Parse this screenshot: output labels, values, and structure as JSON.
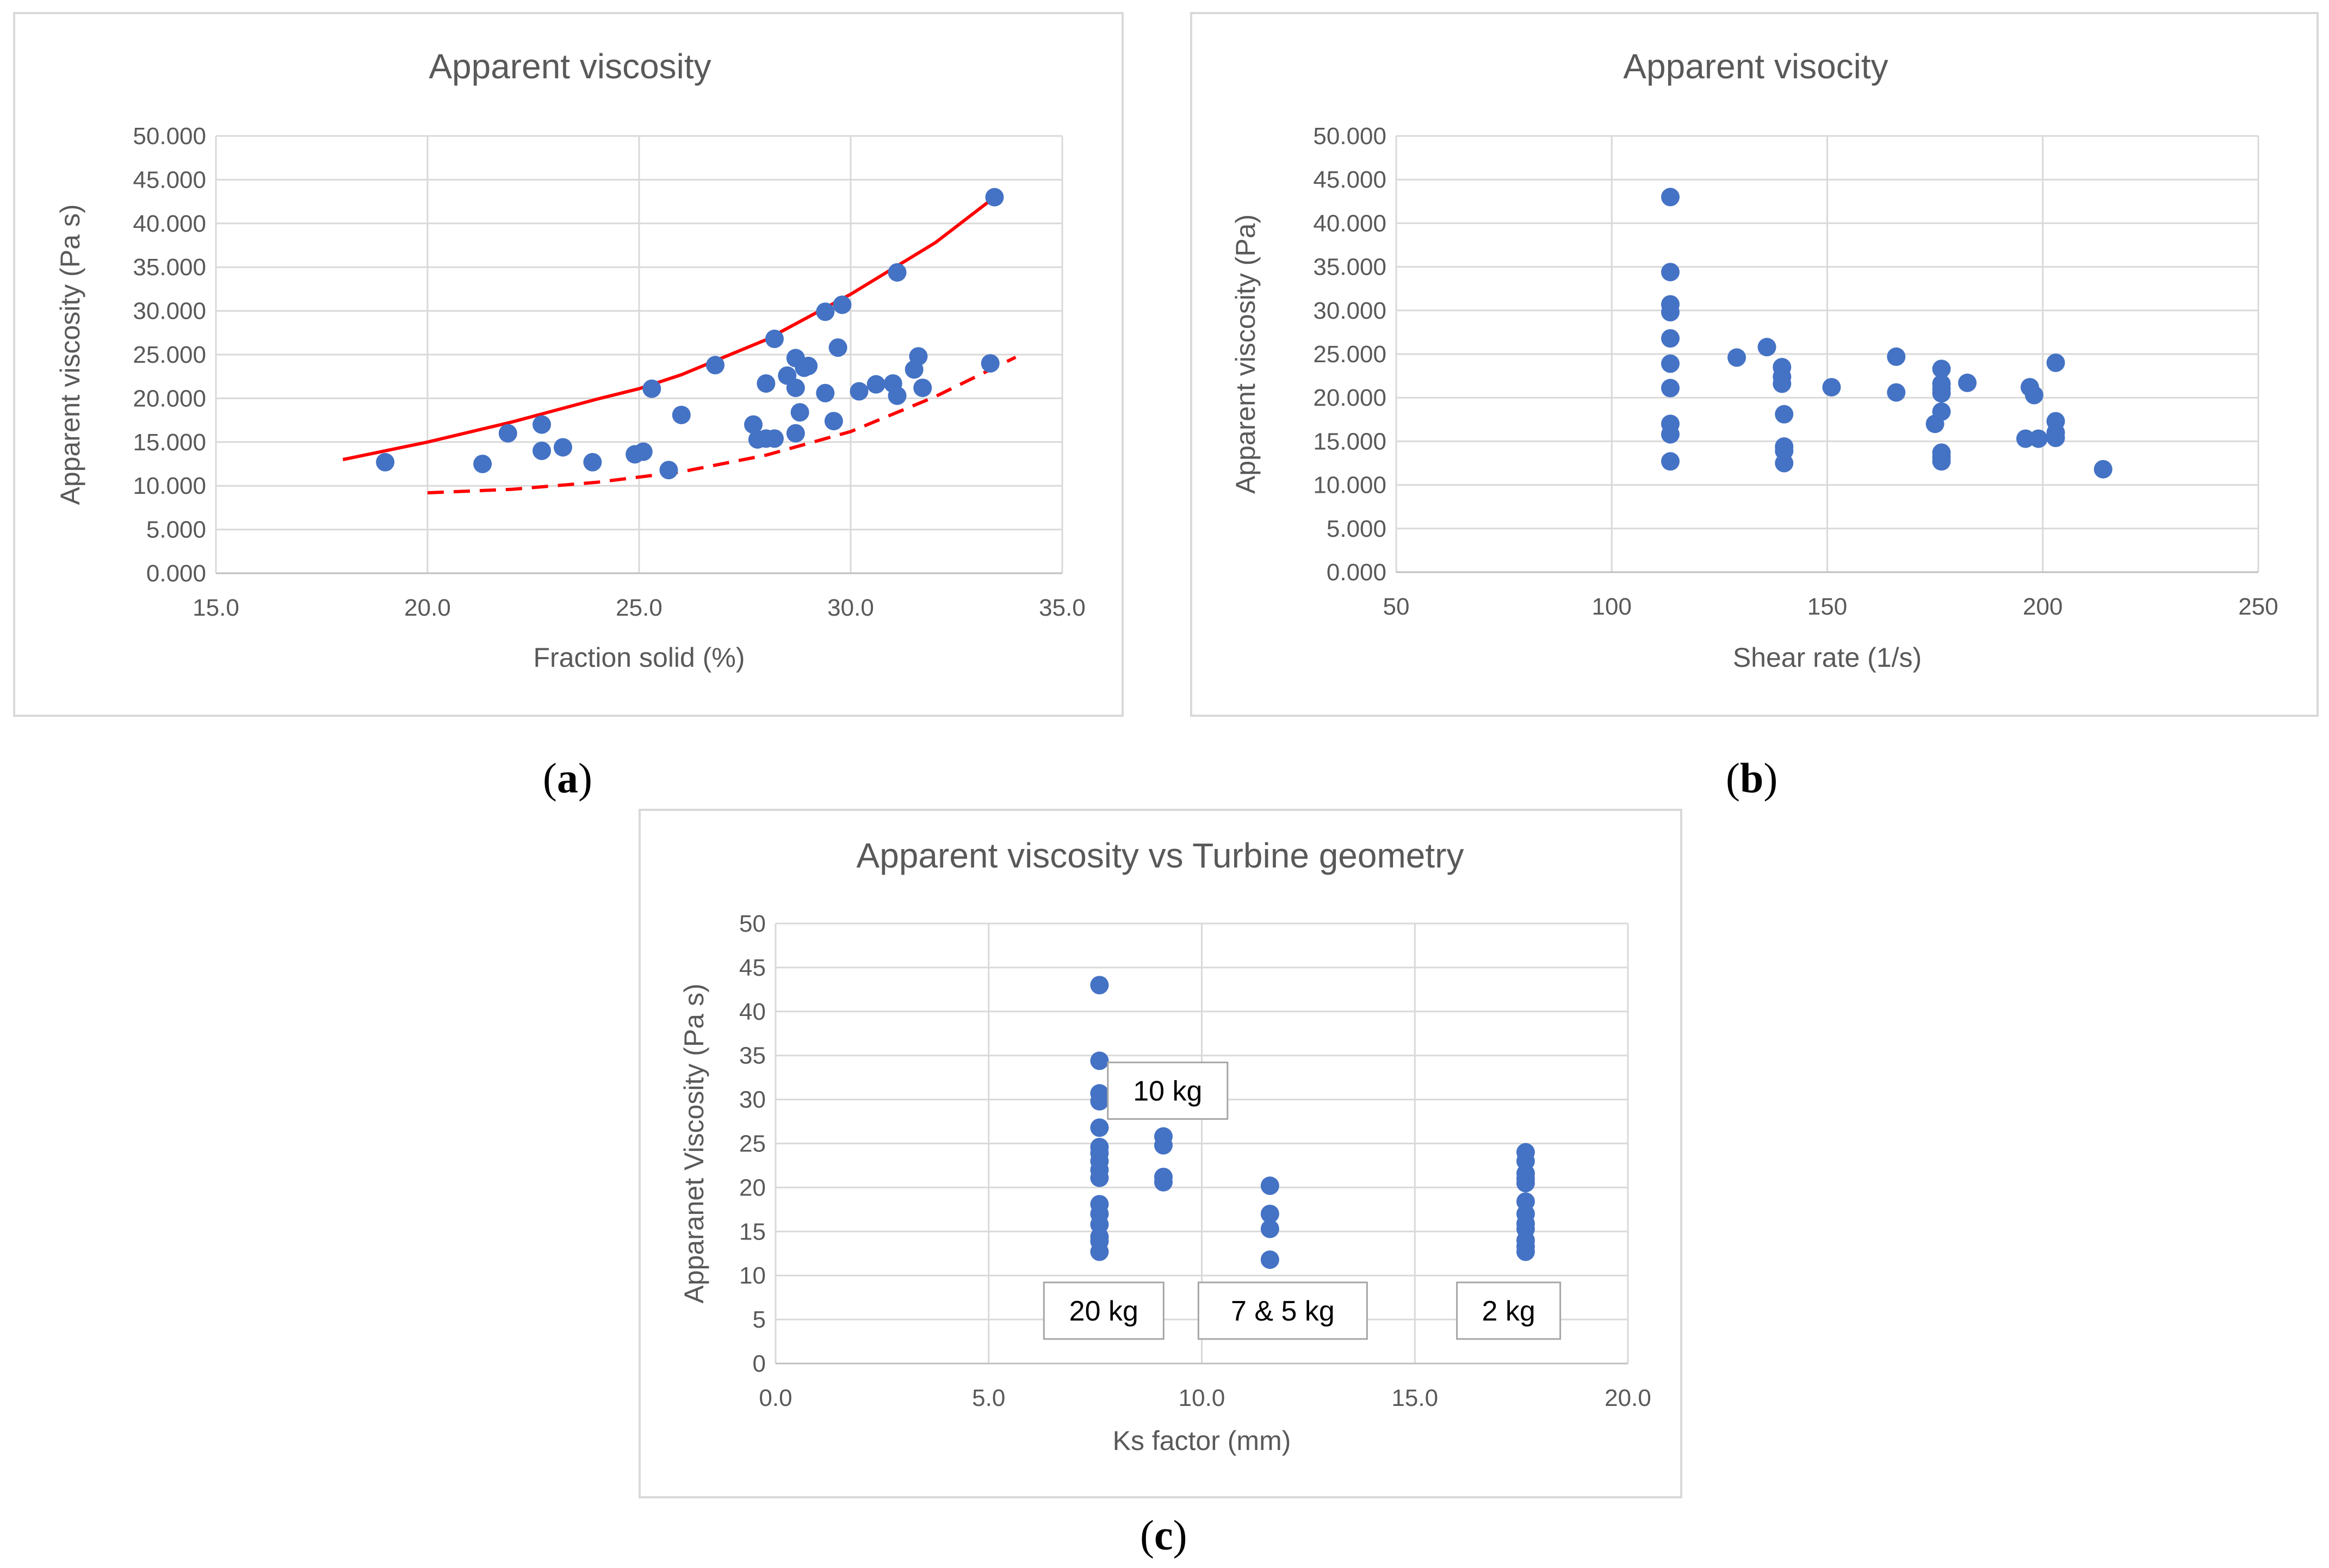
{
  "colors": {
    "point": "#4472c4",
    "fit": "#ff0000",
    "grid": "#d9d9d9",
    "axis": "#bfbfbf",
    "text": "#595959",
    "annotation_border": "#a6a6a6"
  },
  "chart_data": [
    {
      "id": "a",
      "caption_letter": "a",
      "type": "scatter",
      "title": "Apparent viscosity",
      "xlabel": "Fraction solid (%)",
      "ylabel": "Apparent viscosity (Pa s)",
      "xlim": [
        15,
        35
      ],
      "ylim": [
        0,
        50
      ],
      "xticks": [
        15,
        20,
        25,
        30,
        35
      ],
      "yticks": [
        0,
        5,
        10,
        15,
        20,
        25,
        30,
        35,
        40,
        45,
        50
      ],
      "xtick_labels": [
        "15.0",
        "20.0",
        "25.0",
        "30.0",
        "35.0"
      ],
      "ytick_labels": [
        "0.000",
        "5.000",
        "10.000",
        "15.000",
        "20.000",
        "25.000",
        "30.000",
        "35.000",
        "40.000",
        "45.000",
        "50.000"
      ],
      "grid": true,
      "points": [
        [
          19.0,
          12.7
        ],
        [
          21.3,
          12.5
        ],
        [
          21.9,
          16.0
        ],
        [
          22.7,
          17.0
        ],
        [
          22.7,
          14.0
        ],
        [
          23.2,
          14.4
        ],
        [
          23.9,
          12.7
        ],
        [
          24.9,
          13.6
        ],
        [
          25.1,
          13.9
        ],
        [
          25.3,
          21.1
        ],
        [
          25.7,
          11.8
        ],
        [
          26.0,
          18.1
        ],
        [
          26.8,
          23.8
        ],
        [
          27.7,
          17.0
        ],
        [
          27.8,
          15.3
        ],
        [
          28.0,
          15.4
        ],
        [
          28.2,
          15.4
        ],
        [
          28.0,
          21.7
        ],
        [
          28.2,
          26.8
        ],
        [
          28.5,
          22.6
        ],
        [
          28.7,
          24.6
        ],
        [
          28.7,
          21.2
        ],
        [
          28.8,
          18.4
        ],
        [
          28.7,
          16.0
        ],
        [
          28.9,
          23.5
        ],
        [
          29.0,
          23.7
        ],
        [
          29.4,
          20.6
        ],
        [
          29.4,
          29.9
        ],
        [
          29.6,
          17.4
        ],
        [
          29.8,
          30.7
        ],
        [
          29.7,
          25.8
        ],
        [
          30.2,
          20.8
        ],
        [
          30.6,
          21.6
        ],
        [
          31.0,
          21.7
        ],
        [
          31.1,
          20.3
        ],
        [
          31.1,
          34.4
        ],
        [
          31.5,
          23.3
        ],
        [
          31.6,
          24.8
        ],
        [
          31.7,
          21.2
        ],
        [
          33.3,
          24.0
        ],
        [
          33.4,
          43.0
        ]
      ],
      "upper_fit": [
        [
          18.0,
          13.0
        ],
        [
          20.0,
          15.0
        ],
        [
          22.0,
          17.3
        ],
        [
          24.0,
          19.9
        ],
        [
          25.0,
          21.1
        ],
        [
          26.0,
          22.7
        ],
        [
          28.0,
          26.7
        ],
        [
          30.0,
          31.9
        ],
        [
          32.0,
          37.8
        ],
        [
          33.4,
          43.0
        ]
      ],
      "lower_fit": [
        [
          20.0,
          9.2
        ],
        [
          22.0,
          9.6
        ],
        [
          24.0,
          10.4
        ],
        [
          26.0,
          11.6
        ],
        [
          28.0,
          13.5
        ],
        [
          30.0,
          16.2
        ],
        [
          32.0,
          20.2
        ],
        [
          33.9,
          24.7
        ]
      ],
      "series": [
        "Measured points",
        "Upper fit (solid)",
        "Lower fit (dashed)"
      ]
    },
    {
      "id": "b",
      "caption_letter": "b",
      "type": "scatter",
      "title": "Apparent visocity",
      "xlabel": "Shear rate (1/s)",
      "ylabel": "Apparent viscosity (Pa)",
      "xlim": [
        50,
        250
      ],
      "ylim": [
        0,
        50
      ],
      "xticks": [
        50,
        100,
        150,
        200,
        250
      ],
      "yticks": [
        0,
        5,
        10,
        15,
        20,
        25,
        30,
        35,
        40,
        45,
        50
      ],
      "xtick_labels": [
        "50",
        "100",
        "150",
        "200",
        "250"
      ],
      "ytick_labels": [
        "0.000",
        "5.000",
        "10.000",
        "15.000",
        "20.000",
        "25.000",
        "30.000",
        "35.000",
        "40.000",
        "45.000",
        "50.000"
      ],
      "grid": true,
      "points": [
        [
          113.6,
          43.0
        ],
        [
          113.6,
          34.4
        ],
        [
          113.6,
          30.7
        ],
        [
          113.6,
          29.8
        ],
        [
          113.6,
          26.8
        ],
        [
          113.6,
          23.9
        ],
        [
          113.6,
          21.1
        ],
        [
          113.6,
          17.0
        ],
        [
          113.6,
          15.8
        ],
        [
          113.6,
          12.7
        ],
        [
          129.0,
          24.6
        ],
        [
          136.0,
          25.8
        ],
        [
          139.5,
          23.5
        ],
        [
          139.5,
          22.4
        ],
        [
          139.5,
          21.6
        ],
        [
          140.0,
          18.1
        ],
        [
          140.0,
          14.4
        ],
        [
          140.0,
          13.9
        ],
        [
          140.0,
          12.5
        ],
        [
          151.0,
          21.2
        ],
        [
          166.0,
          24.7
        ],
        [
          166.0,
          20.6
        ],
        [
          175.0,
          17.0
        ],
        [
          176.5,
          23.3
        ],
        [
          176.5,
          21.6
        ],
        [
          176.5,
          21.0
        ],
        [
          176.5,
          20.5
        ],
        [
          176.5,
          18.4
        ],
        [
          176.5,
          13.7
        ],
        [
          176.5,
          13.2
        ],
        [
          176.5,
          12.7
        ],
        [
          182.5,
          21.7
        ],
        [
          196.0,
          15.3
        ],
        [
          197.0,
          21.2
        ],
        [
          198.0,
          20.3
        ],
        [
          199.0,
          15.3
        ],
        [
          203.0,
          24.0
        ],
        [
          203.0,
          17.3
        ],
        [
          203.0,
          16.0
        ],
        [
          203.0,
          15.4
        ],
        [
          214.0,
          11.8
        ]
      ]
    },
    {
      "id": "c",
      "caption_letter": "c",
      "type": "scatter",
      "title": "Apparent viscosity vs Turbine geometry",
      "xlabel": "Ks factor (mm)",
      "ylabel": "Apparanet Viscosity (Pa s)",
      "xlim": [
        0,
        20
      ],
      "ylim": [
        0,
        50
      ],
      "xticks": [
        0,
        5,
        10,
        15,
        20
      ],
      "yticks": [
        0,
        5,
        10,
        15,
        20,
        25,
        30,
        35,
        40,
        45,
        50
      ],
      "xtick_labels": [
        "0.0",
        "5.0",
        "10.0",
        "15.0",
        "20.0"
      ],
      "ytick_labels": [
        "0",
        "5",
        "10",
        "15",
        "20",
        "25",
        "30",
        "35",
        "40",
        "45",
        "50"
      ],
      "grid": true,
      "points": [
        [
          7.6,
          43.0
        ],
        [
          7.6,
          34.4
        ],
        [
          7.6,
          30.7
        ],
        [
          7.6,
          29.8
        ],
        [
          7.6,
          26.8
        ],
        [
          7.6,
          24.6
        ],
        [
          7.6,
          23.9
        ],
        [
          7.6,
          23.0
        ],
        [
          7.6,
          22.0
        ],
        [
          7.6,
          21.1
        ],
        [
          7.6,
          18.1
        ],
        [
          7.6,
          17.0
        ],
        [
          7.6,
          15.8
        ],
        [
          7.6,
          14.4
        ],
        [
          7.6,
          13.9
        ],
        [
          7.6,
          12.7
        ],
        [
          9.1,
          25.8
        ],
        [
          9.1,
          24.8
        ],
        [
          9.1,
          21.2
        ],
        [
          9.1,
          20.6
        ],
        [
          11.6,
          20.2
        ],
        [
          11.6,
          17.0
        ],
        [
          11.6,
          15.3
        ],
        [
          11.6,
          11.8
        ],
        [
          17.6,
          24.0
        ],
        [
          17.6,
          23.0
        ],
        [
          17.6,
          21.6
        ],
        [
          17.6,
          21.0
        ],
        [
          17.6,
          20.5
        ],
        [
          17.6,
          18.4
        ],
        [
          17.6,
          17.0
        ],
        [
          17.6,
          15.9
        ],
        [
          17.6,
          15.3
        ],
        [
          17.6,
          14.0
        ],
        [
          17.6,
          13.3
        ],
        [
          17.6,
          12.7
        ]
      ],
      "annotations": [
        {
          "text": "10 kg",
          "x": 9.2,
          "y": 31.0
        },
        {
          "text": "20 kg",
          "x": 7.7,
          "y": 6.0
        },
        {
          "text": "7 & 5 kg",
          "x": 11.9,
          "y": 6.0
        },
        {
          "text": "2 kg",
          "x": 17.2,
          "y": 6.0
        }
      ]
    }
  ]
}
